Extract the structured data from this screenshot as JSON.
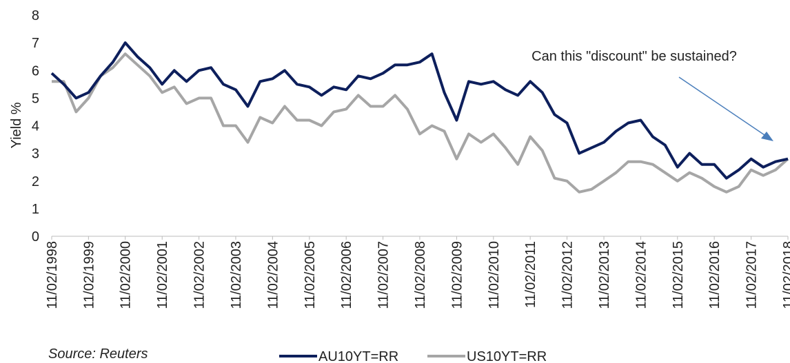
{
  "chart_data": {
    "type": "line",
    "annotation": "Can this \"discount\"  be sustained?",
    "source": "Source: Reuters",
    "ylabel": "Yield %",
    "x": [
      "11/02/1998",
      "11/06/1998",
      "11/10/1998",
      "11/02/1999",
      "11/06/1999",
      "11/10/1999",
      "11/02/2000",
      "11/06/2000",
      "11/10/2000",
      "11/02/2001",
      "11/06/2001",
      "11/10/2001",
      "11/02/2002",
      "11/06/2002",
      "11/10/2002",
      "11/02/2003",
      "11/06/2003",
      "11/10/2003",
      "11/02/2004",
      "11/06/2004",
      "11/10/2004",
      "11/02/2005",
      "11/06/2005",
      "11/10/2005",
      "11/02/2006",
      "11/06/2006",
      "11/10/2006",
      "11/02/2007",
      "11/06/2007",
      "11/10/2007",
      "11/02/2008",
      "11/06/2008",
      "11/10/2008",
      "11/02/2009",
      "11/06/2009",
      "11/10/2009",
      "11/02/2010",
      "11/06/2010",
      "11/10/2010",
      "11/02/2011",
      "11/06/2011",
      "11/10/2011",
      "11/02/2012",
      "11/06/2012",
      "11/10/2012",
      "11/02/2013",
      "11/06/2013",
      "11/10/2013",
      "11/02/2014",
      "11/06/2014",
      "11/10/2014",
      "11/02/2015",
      "11/06/2015",
      "11/10/2015",
      "11/02/2016",
      "11/06/2016",
      "11/10/2016",
      "11/02/2017",
      "11/06/2017",
      "11/10/2017",
      "11/02/2018"
    ],
    "series": [
      {
        "name": "AU10YT=RR",
        "color": "#0d1f5c",
        "values": [
          5.9,
          5.5,
          5.0,
          5.2,
          5.8,
          6.3,
          7.0,
          6.5,
          6.1,
          5.5,
          6.0,
          5.6,
          6.0,
          6.1,
          5.5,
          5.3,
          4.7,
          5.6,
          5.7,
          6.0,
          5.5,
          5.4,
          5.1,
          5.4,
          5.3,
          5.8,
          5.7,
          5.9,
          6.2,
          6.2,
          6.3,
          6.6,
          5.2,
          4.2,
          5.6,
          5.5,
          5.6,
          5.3,
          5.1,
          5.6,
          5.2,
          4.4,
          4.1,
          3.0,
          3.2,
          3.4,
          3.8,
          4.1,
          4.2,
          3.6,
          3.3,
          2.5,
          3.0,
          2.6,
          2.6,
          2.1,
          2.4,
          2.8,
          2.5,
          2.7,
          2.8
        ]
      },
      {
        "name": "US10YT=RR",
        "color": "#a6a6a6",
        "values": [
          5.6,
          5.6,
          4.5,
          5.0,
          5.8,
          6.1,
          6.6,
          6.2,
          5.8,
          5.2,
          5.4,
          4.8,
          5.0,
          5.0,
          4.0,
          4.0,
          3.4,
          4.3,
          4.1,
          4.7,
          4.2,
          4.2,
          4.0,
          4.5,
          4.6,
          5.1,
          4.7,
          4.7,
          5.1,
          4.6,
          3.7,
          4.0,
          3.8,
          2.8,
          3.7,
          3.4,
          3.7,
          3.2,
          2.6,
          3.6,
          3.1,
          2.1,
          2.0,
          1.6,
          1.7,
          2.0,
          2.3,
          2.7,
          2.7,
          2.6,
          2.3,
          2.0,
          2.3,
          2.1,
          1.8,
          1.6,
          1.8,
          2.4,
          2.2,
          2.4,
          2.8
        ]
      }
    ],
    "xlim": [
      "11/02/1998",
      "11/02/2018"
    ],
    "xticks": [
      "11/02/1998",
      "11/02/1999",
      "11/02/2000",
      "11/02/2001",
      "11/02/2002",
      "11/02/2003",
      "11/02/2004",
      "11/02/2005",
      "11/02/2006",
      "11/02/2007",
      "11/02/2008",
      "11/02/2009",
      "11/02/2010",
      "11/02/2011",
      "11/02/2012",
      "11/02/2013",
      "11/02/2014",
      "11/02/2015",
      "11/02/2016",
      "11/02/2017",
      "11/02/2018"
    ],
    "ylim": [
      0,
      8
    ],
    "yticks": [
      0,
      1,
      2,
      3,
      4,
      5,
      6,
      7,
      8
    ],
    "grid": false
  }
}
